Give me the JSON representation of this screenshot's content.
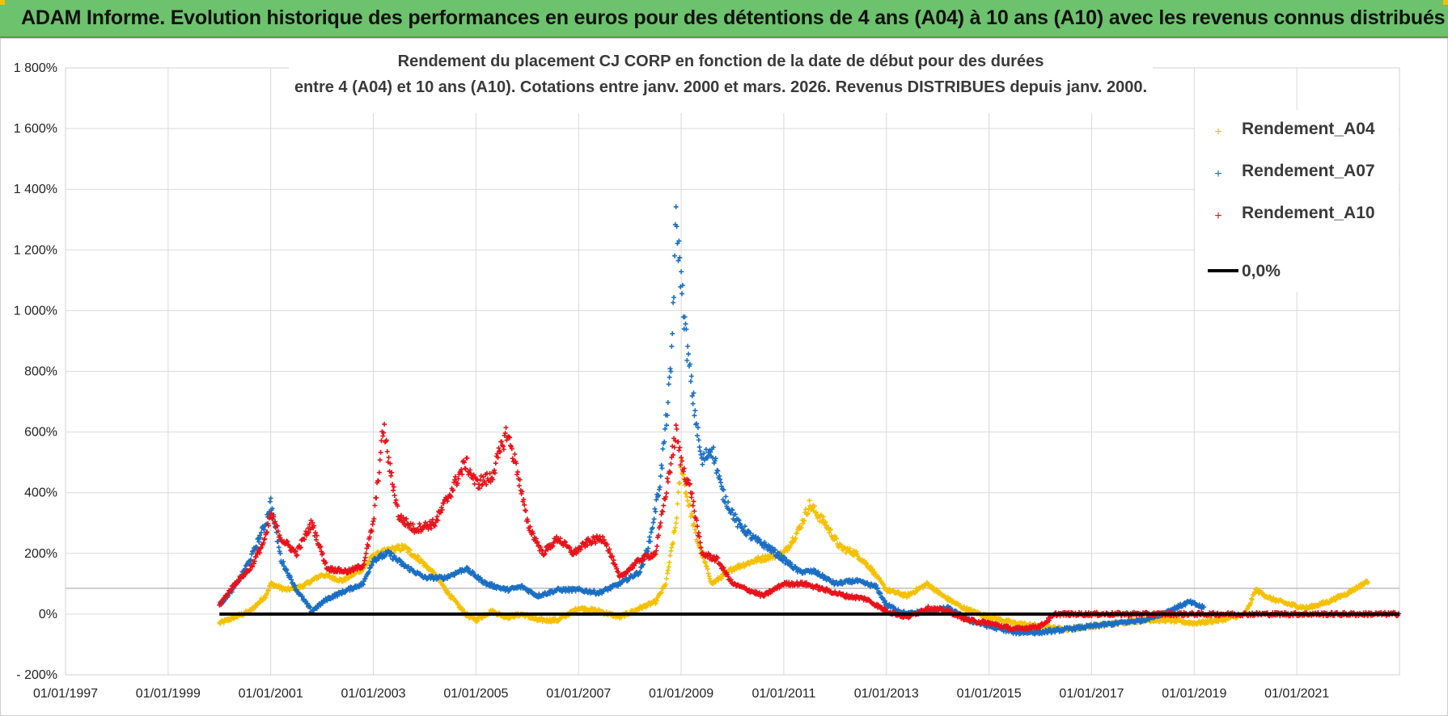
{
  "banner": {
    "title": "ADAM Informe. Evolution historique des performances en euros pour des détentions de 4 ans (A04) à 10 ans (A10) avec les revenus connus distribués"
  },
  "colors": {
    "banner_bg": "#6dc26d",
    "A04": "#f5c000",
    "A07": "#1a6fc4",
    "A10": "#e8131b",
    "zero": "#000000",
    "grid": "#d9d9d9"
  },
  "chart_data": {
    "type": "scatter",
    "title_lines": [
      "Rendement du placement CJ CORP en fonction de la date de début pour des durées",
      "entre 4 (A04) et 10 ans (A10).  Cotations entre janv. 2000 et mars. 2026.  Revenus DISTRIBUES depuis janv. 2000."
    ],
    "ylim": [
      -200,
      1800
    ],
    "y_ticks": [
      -200,
      0,
      200,
      400,
      600,
      800,
      1000,
      1200,
      1400,
      1600,
      1800
    ],
    "y_tick_labels": [
      "- 200%",
      "0%",
      "200%",
      "400%",
      "600%",
      "800%",
      "1 000%",
      "1 200%",
      "1 400%",
      "1 600%",
      "1 800%"
    ],
    "xlim": [
      1997.0,
      2023.0
    ],
    "x_ticks": [
      1997,
      1999,
      2001,
      2003,
      2005,
      2007,
      2009,
      2011,
      2013,
      2015,
      2017,
      2019,
      2021
    ],
    "x_tick_labels": [
      "01/01/1997",
      "01/01/1999",
      "01/01/2001",
      "01/01/2003",
      "01/01/2005",
      "01/01/2007",
      "01/01/2009",
      "01/01/2011",
      "01/01/2013",
      "01/01/2015",
      "01/01/2017",
      "01/01/2019",
      "01/01/2021"
    ],
    "legend": [
      "Rendement_A04",
      "Rendement_A07",
      "Rendement_A10",
      "0,0%"
    ],
    "legend_position": "top-right",
    "series": [
      {
        "name": "Rendement_A04",
        "color_key": "A04",
        "points": [
          [
            2000.0,
            -30
          ],
          [
            2000.3,
            -10
          ],
          [
            2000.6,
            10
          ],
          [
            2000.9,
            60
          ],
          [
            2001.0,
            100
          ],
          [
            2001.3,
            80
          ],
          [
            2001.6,
            90
          ],
          [
            2002.0,
            130
          ],
          [
            2002.4,
            110
          ],
          [
            2002.8,
            150
          ],
          [
            2003.0,
            190
          ],
          [
            2003.3,
            210
          ],
          [
            2003.6,
            220
          ],
          [
            2003.9,
            180
          ],
          [
            2004.2,
            130
          ],
          [
            2004.5,
            60
          ],
          [
            2004.8,
            0
          ],
          [
            2005.0,
            -20
          ],
          [
            2005.3,
            10
          ],
          [
            2005.6,
            -10
          ],
          [
            2005.9,
            0
          ],
          [
            2006.2,
            -20
          ],
          [
            2006.6,
            -20
          ],
          [
            2007.0,
            20
          ],
          [
            2007.4,
            10
          ],
          [
            2007.8,
            -10
          ],
          [
            2008.2,
            20
          ],
          [
            2008.5,
            40
          ],
          [
            2008.7,
            100
          ],
          [
            2008.9,
            300
          ],
          [
            2009.0,
            500
          ],
          [
            2009.1,
            400
          ],
          [
            2009.3,
            250
          ],
          [
            2009.6,
            100
          ],
          [
            2010.0,
            150
          ],
          [
            2010.5,
            180
          ],
          [
            2011.0,
            200
          ],
          [
            2011.3,
            280
          ],
          [
            2011.5,
            360
          ],
          [
            2011.8,
            300
          ],
          [
            2012.1,
            220
          ],
          [
            2012.4,
            200
          ],
          [
            2012.7,
            150
          ],
          [
            2013.0,
            80
          ],
          [
            2013.4,
            60
          ],
          [
            2013.8,
            100
          ],
          [
            2014.1,
            60
          ],
          [
            2014.5,
            20
          ],
          [
            2015.0,
            -10
          ],
          [
            2015.5,
            -30
          ],
          [
            2016.0,
            -40
          ],
          [
            2016.5,
            -50
          ],
          [
            2017.0,
            -40
          ],
          [
            2017.5,
            -30
          ],
          [
            2018.0,
            -20
          ],
          [
            2018.5,
            -20
          ],
          [
            2019.0,
            -30
          ],
          [
            2019.5,
            -20
          ],
          [
            2020.0,
            0
          ],
          [
            2020.2,
            80
          ],
          [
            2020.5,
            50
          ],
          [
            2020.9,
            30
          ],
          [
            2021.2,
            20
          ],
          [
            2021.6,
            40
          ],
          [
            2022.0,
            70
          ],
          [
            2022.4,
            110
          ]
        ]
      },
      {
        "name": "Rendement_A07",
        "color_key": "A07",
        "points": [
          [
            2000.0,
            30
          ],
          [
            2000.3,
            90
          ],
          [
            2000.6,
            180
          ],
          [
            2000.9,
            300
          ],
          [
            2001.0,
            370
          ],
          [
            2001.2,
            180
          ],
          [
            2001.5,
            80
          ],
          [
            2001.8,
            10
          ],
          [
            2002.1,
            50
          ],
          [
            2002.5,
            80
          ],
          [
            2002.8,
            100
          ],
          [
            2003.0,
            180
          ],
          [
            2003.3,
            200
          ],
          [
            2003.6,
            160
          ],
          [
            2004.0,
            120
          ],
          [
            2004.4,
            120
          ],
          [
            2004.8,
            150
          ],
          [
            2005.2,
            100
          ],
          [
            2005.6,
            80
          ],
          [
            2005.9,
            90
          ],
          [
            2006.2,
            60
          ],
          [
            2006.6,
            80
          ],
          [
            2007.0,
            80
          ],
          [
            2007.4,
            70
          ],
          [
            2007.8,
            100
          ],
          [
            2008.2,
            140
          ],
          [
            2008.4,
            250
          ],
          [
            2008.6,
            450
          ],
          [
            2008.8,
            800
          ],
          [
            2008.9,
            1300
          ],
          [
            2009.0,
            1100
          ],
          [
            2009.1,
            900
          ],
          [
            2009.2,
            750
          ],
          [
            2009.4,
            500
          ],
          [
            2009.6,
            550
          ],
          [
            2009.8,
            400
          ],
          [
            2010.1,
            300
          ],
          [
            2010.4,
            250
          ],
          [
            2010.7,
            220
          ],
          [
            2011.0,
            180
          ],
          [
            2011.3,
            140
          ],
          [
            2011.6,
            140
          ],
          [
            2012.0,
            100
          ],
          [
            2012.4,
            110
          ],
          [
            2012.8,
            90
          ],
          [
            2013.0,
            30
          ],
          [
            2013.4,
            0
          ],
          [
            2013.8,
            10
          ],
          [
            2014.2,
            20
          ],
          [
            2014.6,
            -20
          ],
          [
            2015.0,
            -40
          ],
          [
            2015.5,
            -60
          ],
          [
            2016.0,
            -60
          ],
          [
            2016.5,
            -50
          ],
          [
            2017.0,
            -40
          ],
          [
            2017.5,
            -30
          ],
          [
            2018.0,
            -20
          ],
          [
            2018.5,
            10
          ],
          [
            2018.9,
            40
          ],
          [
            2019.2,
            20
          ]
        ]
      },
      {
        "name": "Rendement_A10",
        "color_key": "A10",
        "points": [
          [
            2000.0,
            30
          ],
          [
            2000.3,
            100
          ],
          [
            2000.6,
            150
          ],
          [
            2000.9,
            250
          ],
          [
            2001.0,
            330
          ],
          [
            2001.2,
            250
          ],
          [
            2001.5,
            200
          ],
          [
            2001.8,
            300
          ],
          [
            2002.1,
            150
          ],
          [
            2002.5,
            140
          ],
          [
            2002.8,
            160
          ],
          [
            2003.0,
            300
          ],
          [
            2003.2,
            620
          ],
          [
            2003.3,
            500
          ],
          [
            2003.5,
            320
          ],
          [
            2003.8,
            280
          ],
          [
            2004.2,
            300
          ],
          [
            2004.5,
            400
          ],
          [
            2004.8,
            500
          ],
          [
            2005.0,
            430
          ],
          [
            2005.3,
            450
          ],
          [
            2005.6,
            600
          ],
          [
            2005.8,
            480
          ],
          [
            2006.0,
            300
          ],
          [
            2006.3,
            200
          ],
          [
            2006.6,
            250
          ],
          [
            2006.9,
            200
          ],
          [
            2007.2,
            240
          ],
          [
            2007.5,
            250
          ],
          [
            2007.8,
            120
          ],
          [
            2008.2,
            180
          ],
          [
            2008.5,
            200
          ],
          [
            2008.7,
            400
          ],
          [
            2008.9,
            600
          ],
          [
            2009.0,
            500
          ],
          [
            2009.2,
            400
          ],
          [
            2009.4,
            200
          ],
          [
            2009.7,
            180
          ],
          [
            2010.0,
            100
          ],
          [
            2010.3,
            80
          ],
          [
            2010.6,
            60
          ],
          [
            2011.0,
            100
          ],
          [
            2011.4,
            100
          ],
          [
            2011.8,
            80
          ],
          [
            2012.2,
            60
          ],
          [
            2012.6,
            50
          ],
          [
            2013.0,
            10
          ],
          [
            2013.4,
            -10
          ],
          [
            2013.8,
            20
          ],
          [
            2014.2,
            10
          ],
          [
            2014.6,
            -20
          ],
          [
            2015.0,
            -30
          ],
          [
            2015.5,
            -50
          ],
          [
            2016.0,
            -40
          ],
          [
            2016.3,
            0
          ],
          [
            2017.0,
            0
          ],
          [
            2018.0,
            0
          ],
          [
            2019.0,
            0
          ],
          [
            2020.0,
            0
          ],
          [
            2021.0,
            0
          ],
          [
            2022.0,
            0
          ],
          [
            2023.0,
            0
          ]
        ]
      }
    ],
    "zero_line": {
      "from": 2000.0,
      "to": 2023.0,
      "value": 0
    }
  }
}
